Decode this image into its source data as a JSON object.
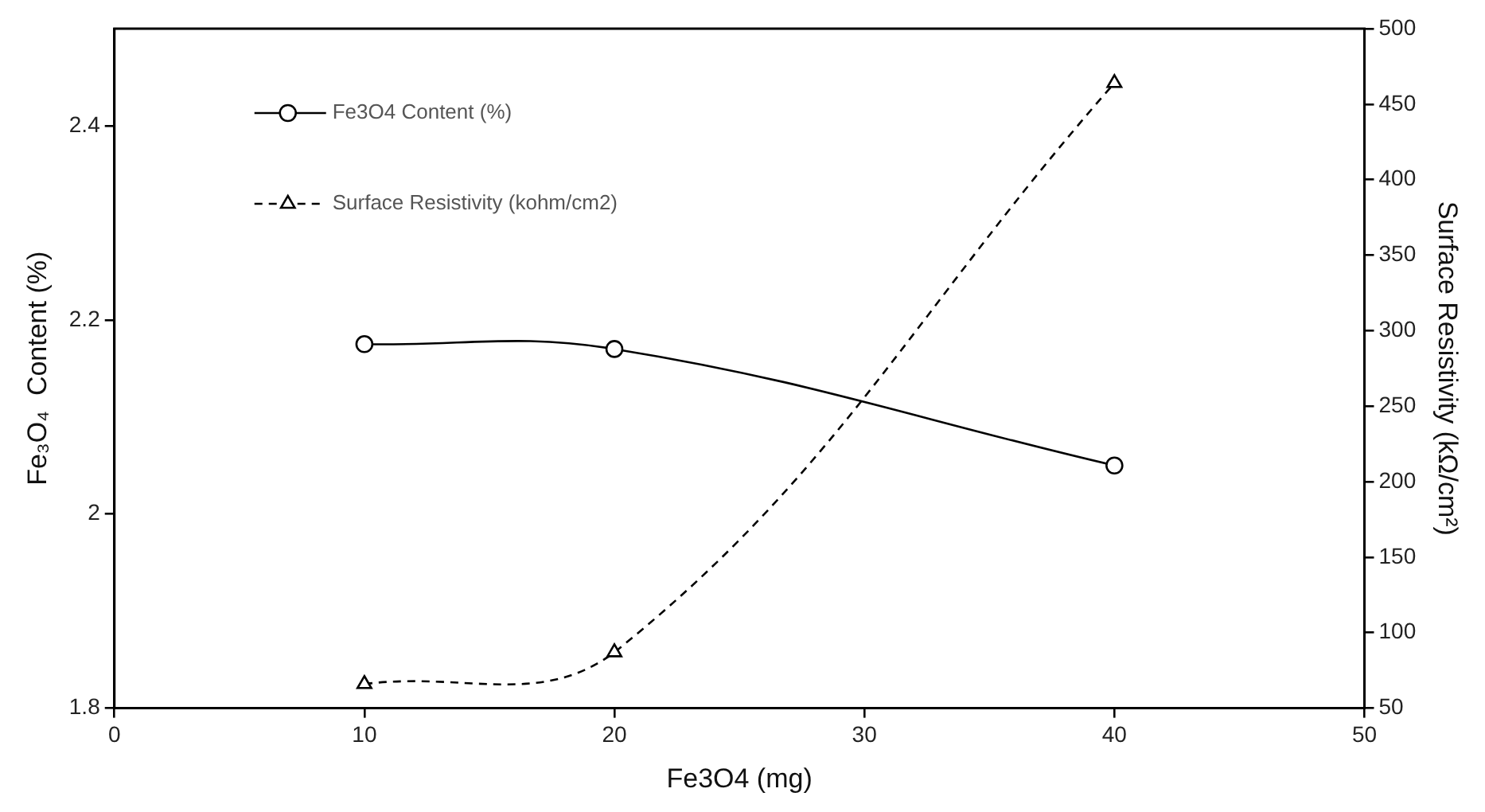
{
  "chart_data": {
    "type": "line",
    "xlabel": "Fe3O4 (mg)",
    "ylabel": "Fe₃O₄  Content (%)",
    "y2label": "Surface Resistivity (kΩ/cm²)",
    "x": [
      10,
      20,
      40
    ],
    "series": [
      {
        "name": "Fe3O4 Content (%)",
        "color": "#000000",
        "values": [
          2.175,
          2.17,
          2.05
        ],
        "marker": "circle",
        "line_style": "solid"
      },
      {
        "name": "Surface Resistivity (kohm/cm2)",
        "color": "#000000",
        "values": [
          66,
          87,
          464
        ],
        "marker": "triangle",
        "line_style": "dashed",
        "axis": "y2"
      }
    ],
    "xlim": [
      0,
      50
    ],
    "xticks": [
      0,
      10,
      20,
      30,
      40,
      50
    ],
    "ylim": [
      1.8,
      2.5
    ],
    "yticks": [
      1.8,
      2,
      2.2,
      2.4
    ],
    "y2lim": [
      50,
      500
    ],
    "y2ticks": [
      50,
      100,
      150,
      200,
      250,
      300,
      350,
      400,
      450,
      500
    ],
    "grid": false,
    "legend": "top left"
  }
}
